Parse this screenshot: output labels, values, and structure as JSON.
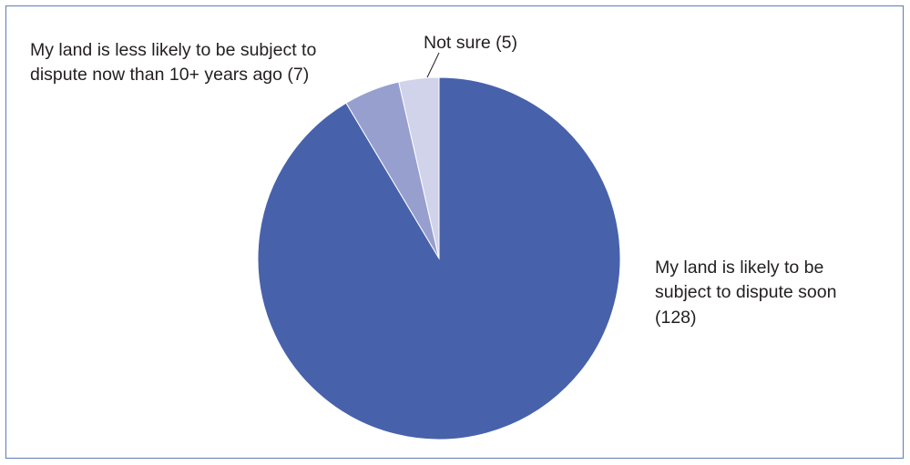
{
  "chart_data": {
    "type": "pie",
    "title": "",
    "start_angle_deg": 0,
    "direction": "clockwise",
    "slices": [
      {
        "label": "My land is likely to be subject to dispute soon (128)",
        "label_lines": [
          "My land is likely to be",
          "subject to dispute soon",
          "(128)"
        ],
        "value": 128,
        "color": "#4762ab"
      },
      {
        "label": "My land is less likely to be subject to dispute now than 10+ years ago (7)",
        "label_lines": [
          "My land is less likely to be subject to",
          "dispute now than 10+ years ago (7)"
        ],
        "value": 7,
        "color": "#979fcf"
      },
      {
        "label": "Not sure (5)",
        "label_lines": [
          "Not sure (5)"
        ],
        "value": 5,
        "color": "#d0d3ea"
      }
    ]
  }
}
